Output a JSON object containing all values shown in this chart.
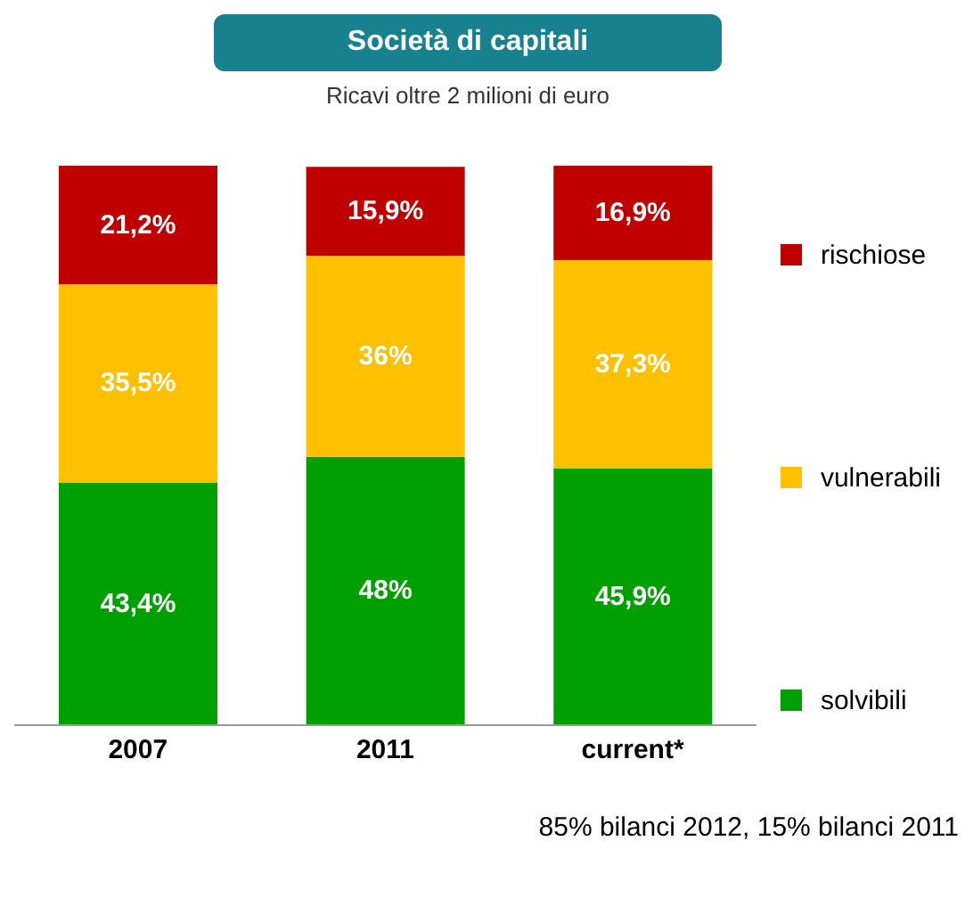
{
  "chart_data": {
    "type": "bar",
    "title": "Società di capitali",
    "subtitle": "Ricavi oltre 2 milioni di euro",
    "categories": [
      "2007",
      "2011",
      "current*"
    ],
    "stacked": true,
    "legend": "right",
    "annotations": [
      "85% bilanci 2012, 15% bilanci 2011"
    ],
    "series": [
      {
        "name": "solvibili",
        "color": "#00a000",
        "values": [
          43.4,
          48,
          45.9
        ],
        "value_labels": [
          "43,4%",
          "48%",
          "45,9%"
        ]
      },
      {
        "name": "vulnerabili",
        "color": "#ffc000",
        "values": [
          35.5,
          36,
          37.3
        ],
        "value_labels": [
          "35,5%",
          "36%",
          "37,3%"
        ]
      },
      {
        "name": "rischiose",
        "color": "#c00000",
        "values": [
          21.2,
          15.9,
          16.9
        ],
        "value_labels": [
          "21,2%",
          "15,9%",
          "16,9%"
        ]
      }
    ]
  }
}
